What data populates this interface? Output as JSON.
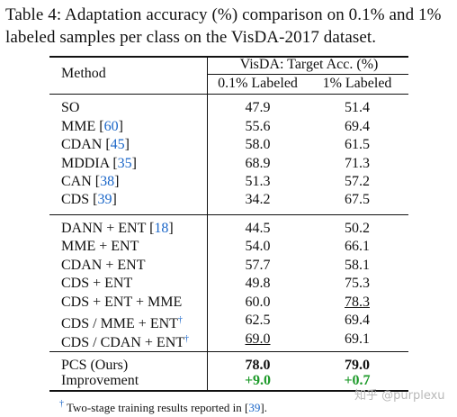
{
  "caption": "Table 4: Adaptation accuracy (%) comparison on 0.1% and 1% labeled samples per class on the VisDA-2017 dataset.",
  "header": {
    "method": "Method",
    "group": "VisDA: Target Acc. (%)",
    "col1": "0.1% Labeled",
    "col2": "1% Labeled"
  },
  "group1": [
    {
      "name": "SO",
      "ref": "",
      "v1": "47.9",
      "v2": "51.4"
    },
    {
      "name": "MME",
      "ref": "60",
      "v1": "55.6",
      "v2": "69.4"
    },
    {
      "name": "CDAN",
      "ref": "45",
      "v1": "58.0",
      "v2": "61.5"
    },
    {
      "name": "MDDIA",
      "ref": "35",
      "v1": "68.9",
      "v2": "71.3"
    },
    {
      "name": "CAN",
      "ref": "38",
      "v1": "51.3",
      "v2": "57.2"
    },
    {
      "name": "CDS",
      "ref": "39",
      "v1": "34.2",
      "v2": "67.5"
    }
  ],
  "group2": [
    {
      "name": "DANN + ENT",
      "ref": "18",
      "v1": "44.5",
      "v2": "50.2"
    },
    {
      "name": "MME + ENT",
      "ref": "",
      "v1": "54.0",
      "v2": "66.1"
    },
    {
      "name": "CDAN + ENT",
      "ref": "",
      "v1": "57.7",
      "v2": "58.1"
    },
    {
      "name": "CDS + ENT",
      "ref": "",
      "v1": "49.8",
      "v2": "75.3"
    },
    {
      "name": "CDS + ENT + MME",
      "ref": "",
      "v1": "60.0",
      "v2": "78.3"
    },
    {
      "name": "CDS / MME + ENT",
      "dagger": "†",
      "v1": "62.5",
      "v2": "69.4"
    },
    {
      "name": "CDS / CDAN + ENT",
      "dagger": "†",
      "v1": "69.0",
      "v2": "69.1"
    }
  ],
  "group3": [
    {
      "name": "PCS (Ours)",
      "v1": "78.0",
      "v2": "79.0"
    },
    {
      "name": "Improvement",
      "v1": "+9.0",
      "v2": "+0.7"
    }
  ],
  "footnote": {
    "dagger": "†",
    "text": " Two-stage training results reported in [",
    "ref": "39",
    "end": "]."
  },
  "watermark": "知乎 @purplexu"
}
